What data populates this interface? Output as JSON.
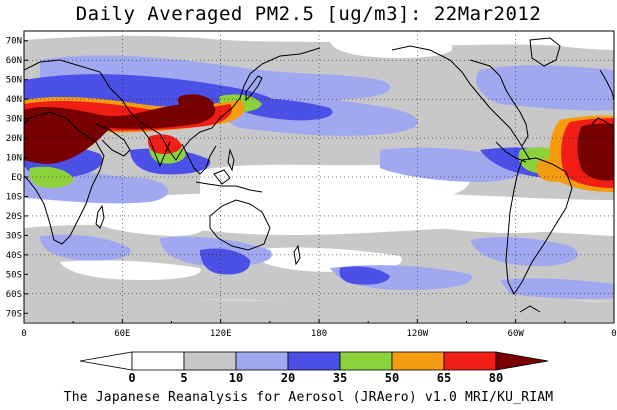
{
  "title": "Daily Averaged PM2.5 [ug/m3]: 22Mar2012",
  "footer": "The Japanese Reanalysis for Aerosol (JRAero) v1.0 MRI/KU_RIAM",
  "map": {
    "lat_labels": [
      {
        "value": 70,
        "label": "70N"
      },
      {
        "value": 60,
        "label": "60N"
      },
      {
        "value": 50,
        "label": "50N"
      },
      {
        "value": 40,
        "label": "40N"
      },
      {
        "value": 30,
        "label": "30N"
      },
      {
        "value": 20,
        "label": "20N"
      },
      {
        "value": 10,
        "label": "10N"
      },
      {
        "value": 0,
        "label": "EQ"
      },
      {
        "value": -10,
        "label": "10S"
      },
      {
        "value": -20,
        "label": "20S"
      },
      {
        "value": -30,
        "label": "30S"
      },
      {
        "value": -40,
        "label": "40S"
      },
      {
        "value": -50,
        "label": "50S"
      },
      {
        "value": -60,
        "label": "60S"
      },
      {
        "value": -70,
        "label": "70S"
      }
    ],
    "lon_labels": [
      {
        "value": 0,
        "label": "0"
      },
      {
        "value": 60,
        "label": "60E"
      },
      {
        "value": 120,
        "label": "120E"
      },
      {
        "value": 180,
        "label": "180"
      },
      {
        "value": 240,
        "label": "120W"
      },
      {
        "value": 300,
        "label": "60W"
      },
      {
        "value": 360,
        "label": "0"
      }
    ]
  },
  "colorbar": {
    "levels": [
      "0",
      "5",
      "10",
      "20",
      "35",
      "50",
      "65",
      "80"
    ],
    "colors": [
      "#ffffff",
      "#ffffff",
      "#c8c8c8",
      "#a0a8f0",
      "#4b50e6",
      "#8cd23c",
      "#f59b0f",
      "#f01e14",
      "#780000"
    ]
  },
  "palette": {
    "gray": "#c8c8c8",
    "light_blue": "#a0a8f0",
    "blue": "#4b50e6",
    "green": "#8cd23c",
    "orange": "#f59b0f",
    "red": "#f01e14",
    "dark_red": "#780000"
  }
}
